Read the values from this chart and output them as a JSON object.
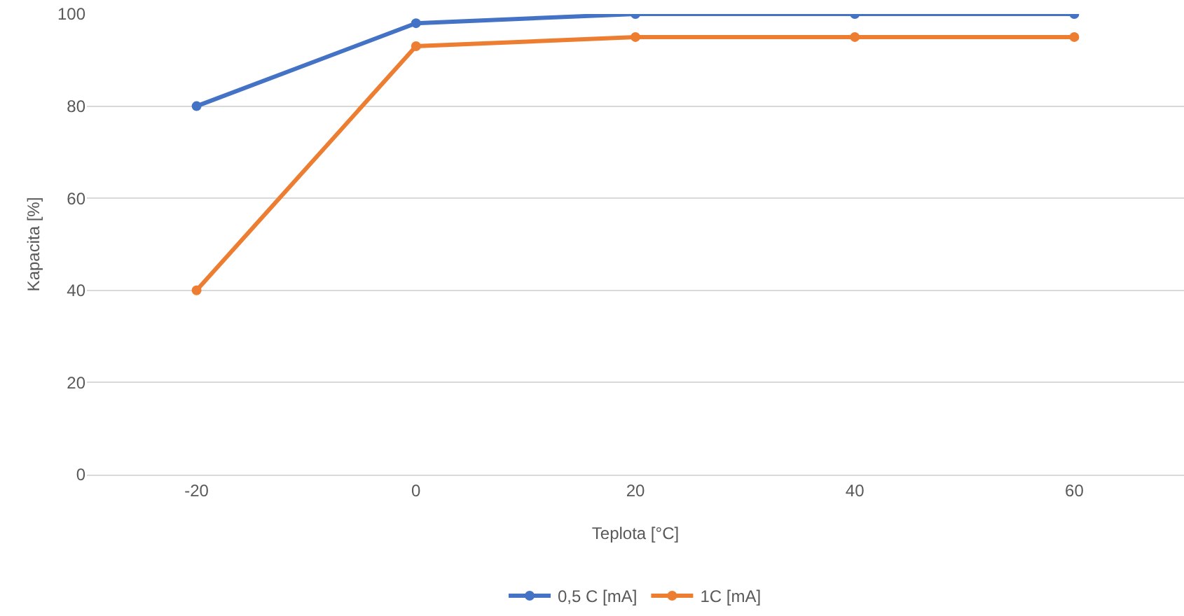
{
  "chart_data": {
    "type": "line",
    "xlabel": "Teplota [°C]",
    "ylabel": "Kapacita [%]",
    "categories": [
      "-20",
      "0",
      "20",
      "40",
      "60"
    ],
    "series": [
      {
        "name": "0,5 C [mA]",
        "color": "#4472c4",
        "values": [
          80,
          98,
          100,
          100,
          100
        ]
      },
      {
        "name": "1C [mA]",
        "color": "#ed7d31",
        "values": [
          40,
          93,
          95,
          95,
          95
        ]
      }
    ],
    "ylim": [
      0,
      100
    ],
    "yticks": [
      0,
      20,
      40,
      60,
      80,
      100
    ],
    "grid": "y",
    "legend": "bottom",
    "marker": "circle",
    "line_style": "solid"
  }
}
